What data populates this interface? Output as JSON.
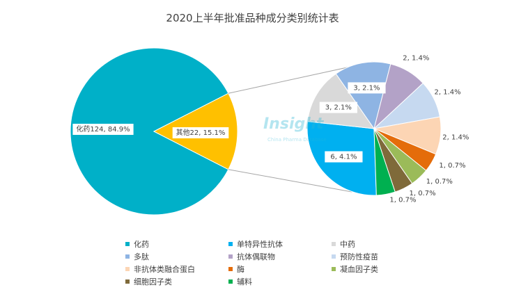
{
  "chart_data": {
    "type": "pie",
    "title": "2020上半年批准品种成分类别统计表",
    "main_pie": [
      {
        "name": "化药",
        "value": 124,
        "percent": "84.9%",
        "color": "#00b0c8"
      },
      {
        "name": "其他",
        "value": 22,
        "percent": "15.1%",
        "color": "#ffc000"
      }
    ],
    "secondary_pie": [
      {
        "name": "单特异性抗体",
        "value": 6,
        "percent": "4.1%",
        "color": "#00b0f0"
      },
      {
        "name": "中药",
        "value": 3,
        "percent": "2.1%",
        "color": "#d9d9d9"
      },
      {
        "name": "多肽",
        "value": 3,
        "percent": "2.1%",
        "color": "#8eb4e3"
      },
      {
        "name": "抗体偶联物",
        "value": 2,
        "percent": "1.4%",
        "color": "#b3a2c7"
      },
      {
        "name": "预防性疫苗",
        "value": 2,
        "percent": "1.4%",
        "color": "#c6d9f0"
      },
      {
        "name": "非抗体类融合蛋白",
        "value": 2,
        "percent": "1.4%",
        "color": "#fcd5b4"
      },
      {
        "name": "酶",
        "value": 1,
        "percent": "0.7%",
        "color": "#e46c0a"
      },
      {
        "name": "凝血因子类",
        "value": 1,
        "percent": "0.7%",
        "color": "#9bbb59"
      },
      {
        "name": "细胞因子类",
        "value": 1,
        "percent": "0.7%",
        "color": "#7f6a3a"
      },
      {
        "name": "辅料",
        "value": 1,
        "percent": "0.7%",
        "color": "#00b050"
      }
    ],
    "main_labels": [
      "化药124, 84.9%",
      "其他22, 15.1%"
    ],
    "secondary_labels": [
      "6, 4.1%",
      "3, 2.1%",
      "3, 2.1%",
      "2, 1.4%",
      "2, 1.4%",
      "2, 1.4%",
      "1, 0.7%",
      "1, 0.7%",
      "1, 0.7%",
      "1, 0.7%"
    ],
    "legend_placement": "bottom"
  },
  "legend": [
    {
      "label": "化药",
      "color": "#00b0c8"
    },
    {
      "label": "单特异性抗体",
      "color": "#00b0f0"
    },
    {
      "label": "中药",
      "color": "#d9d9d9"
    },
    {
      "label": "多肽",
      "color": "#8eb4e3"
    },
    {
      "label": "抗体偶联物",
      "color": "#b3a2c7"
    },
    {
      "label": "预防性疫苗",
      "color": "#c6d9f0"
    },
    {
      "label": "非抗体类融合蛋白",
      "color": "#fcd5b4"
    },
    {
      "label": "酶",
      "color": "#e46c0a"
    },
    {
      "label": "凝血因子类",
      "color": "#9bbb59"
    },
    {
      "label": "细胞因子类",
      "color": "#7f6a3a"
    },
    {
      "label": "辅料",
      "color": "#00b050"
    }
  ],
  "watermark": {
    "text": "Insight",
    "subtext": "China Pharma Database"
  }
}
